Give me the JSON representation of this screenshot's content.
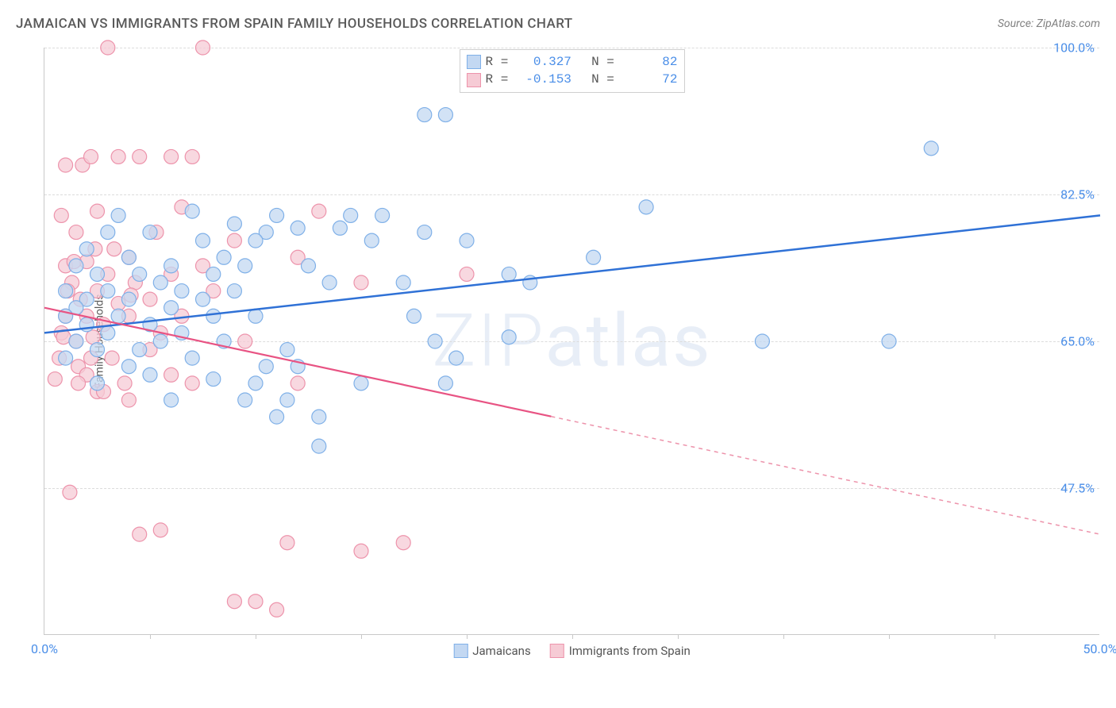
{
  "header": {
    "title": "JAMAICAN VS IMMIGRANTS FROM SPAIN FAMILY HOUSEHOLDS CORRELATION CHART",
    "source": "Source: ZipAtlas.com"
  },
  "chart": {
    "type": "scatter",
    "ylabel": "Family Households",
    "watermark_prefix": "ZIP",
    "watermark_suffix": "atlas",
    "plot_bg": "#ffffff",
    "grid_color": "#dcdcdc",
    "axis_color": "#c8c8c8",
    "label_color": "#4a8ee8",
    "text_color": "#5a5a5a",
    "xlim": [
      0,
      50
    ],
    "ylim": [
      30,
      100
    ],
    "xtick_labels": [
      {
        "pos": 0,
        "label": "0.0%"
      },
      {
        "pos": 50,
        "label": "50.0%"
      }
    ],
    "xtick_marks": [
      5,
      10,
      15,
      20,
      25,
      30,
      35,
      40,
      45
    ],
    "yticks": [
      {
        "pos": 47.5,
        "label": "47.5%"
      },
      {
        "pos": 65.0,
        "label": "65.0%"
      },
      {
        "pos": 82.5,
        "label": "82.5%"
      },
      {
        "pos": 100.0,
        "label": "100.0%"
      }
    ],
    "series": [
      {
        "name": "Jamaicans",
        "fill_color": "#c3d8f2",
        "stroke_color": "#7fb0e8",
        "line_color": "#2f71d6",
        "line_width": 2.5,
        "marker_radius": 9,
        "r_value": "0.327",
        "n_value": "82",
        "trend": {
          "x1": 0,
          "y1": 66,
          "x2": 50,
          "y2": 80,
          "dashed": false
        },
        "points": [
          [
            19,
            92
          ],
          [
            42,
            88
          ],
          [
            28.5,
            81
          ],
          [
            34,
            65
          ],
          [
            26,
            75
          ],
          [
            23,
            72
          ],
          [
            22,
            73
          ],
          [
            20,
            77
          ],
          [
            19.5,
            63
          ],
          [
            19,
            60
          ],
          [
            18.5,
            65
          ],
          [
            18,
            92
          ],
          [
            18,
            78
          ],
          [
            17.5,
            68
          ],
          [
            17,
            72
          ],
          [
            16,
            80
          ],
          [
            15.5,
            77
          ],
          [
            15,
            60
          ],
          [
            14.5,
            80
          ],
          [
            14,
            78.5
          ],
          [
            13.5,
            72
          ],
          [
            13,
            56
          ],
          [
            13,
            52.5
          ],
          [
            12.5,
            74
          ],
          [
            12,
            78.5
          ],
          [
            12,
            62
          ],
          [
            11.5,
            58
          ],
          [
            11.5,
            64
          ],
          [
            11,
            56
          ],
          [
            11,
            80
          ],
          [
            10.5,
            62
          ],
          [
            10.5,
            78
          ],
          [
            10,
            77
          ],
          [
            10,
            68
          ],
          [
            10,
            60
          ],
          [
            9.5,
            74
          ],
          [
            9.5,
            58
          ],
          [
            9,
            79
          ],
          [
            9,
            71
          ],
          [
            8.5,
            65
          ],
          [
            8.5,
            75
          ],
          [
            8,
            60.5
          ],
          [
            8,
            68
          ],
          [
            8,
            73
          ],
          [
            7.5,
            70
          ],
          [
            7.5,
            77
          ],
          [
            7,
            63
          ],
          [
            7,
            80.5
          ],
          [
            6.5,
            71
          ],
          [
            6.5,
            66
          ],
          [
            6,
            74
          ],
          [
            6,
            58
          ],
          [
            6,
            69
          ],
          [
            5.5,
            65
          ],
          [
            5.5,
            72
          ],
          [
            5,
            78
          ],
          [
            5,
            61
          ],
          [
            5,
            67
          ],
          [
            4.5,
            73
          ],
          [
            4.5,
            64
          ],
          [
            4,
            70
          ],
          [
            4,
            75
          ],
          [
            4,
            62
          ],
          [
            3.5,
            68
          ],
          [
            3.5,
            80
          ],
          [
            3,
            66
          ],
          [
            3,
            71
          ],
          [
            3,
            78
          ],
          [
            2.5,
            64
          ],
          [
            2.5,
            73
          ],
          [
            2.5,
            60
          ],
          [
            2,
            67
          ],
          [
            2,
            76
          ],
          [
            2,
            70
          ],
          [
            1.5,
            69
          ],
          [
            1.5,
            65
          ],
          [
            1.5,
            74
          ],
          [
            1,
            68
          ],
          [
            1,
            63
          ],
          [
            1,
            71
          ],
          [
            40,
            65
          ],
          [
            22,
            65.5
          ]
        ]
      },
      {
        "name": "Immigants from Spain",
        "display_name": "Immigrants from Spain",
        "fill_color": "#f6cbd5",
        "stroke_color": "#ed93ab",
        "line_color": "#e85383",
        "line_width": 2.2,
        "marker_radius": 9,
        "r_value": "-0.153",
        "n_value": "72",
        "trend": {
          "x1": 0,
          "y1": 69,
          "x2": 50,
          "y2": 42,
          "solid_until_x": 24,
          "dashed": true
        },
        "points": [
          [
            0.5,
            60.5
          ],
          [
            0.7,
            63
          ],
          [
            0.8,
            66
          ],
          [
            0.8,
            80
          ],
          [
            1,
            86
          ],
          [
            1,
            74
          ],
          [
            1,
            68
          ],
          [
            1.2,
            47
          ],
          [
            1.3,
            72
          ],
          [
            1.5,
            65
          ],
          [
            1.5,
            78
          ],
          [
            1.6,
            62
          ],
          [
            1.7,
            70
          ],
          [
            1.8,
            86
          ],
          [
            2,
            74.5
          ],
          [
            2,
            61
          ],
          [
            2,
            68
          ],
          [
            2.2,
            87
          ],
          [
            2.3,
            65.5
          ],
          [
            2.5,
            71
          ],
          [
            2.5,
            80.5
          ],
          [
            2.5,
            59
          ],
          [
            2.8,
            67
          ],
          [
            3,
            73
          ],
          [
            3,
            100
          ],
          [
            3.2,
            63
          ],
          [
            3.5,
            69.5
          ],
          [
            3.5,
            87
          ],
          [
            3.8,
            60
          ],
          [
            4,
            75
          ],
          [
            4,
            68
          ],
          [
            4.3,
            72
          ],
          [
            4.5,
            87
          ],
          [
            4.5,
            42
          ],
          [
            5,
            64
          ],
          [
            5,
            70
          ],
          [
            5.3,
            78
          ],
          [
            5.5,
            66
          ],
          [
            5.5,
            42.5
          ],
          [
            6,
            73
          ],
          [
            6,
            61
          ],
          [
            6.5,
            68
          ],
          [
            7,
            87
          ],
          [
            7,
            60
          ],
          [
            7.5,
            74
          ],
          [
            8,
            71
          ],
          [
            9,
            77
          ],
          [
            9,
            34
          ],
          [
            9.5,
            65
          ],
          [
            10,
            34
          ],
          [
            11,
            33
          ],
          [
            11.5,
            41
          ],
          [
            12,
            60
          ],
          [
            12,
            75
          ],
          [
            13,
            80.5
          ],
          [
            15,
            40
          ],
          [
            15,
            72
          ],
          [
            17,
            41
          ],
          [
            20,
            73
          ],
          [
            6.5,
            81
          ],
          [
            4,
            58
          ],
          [
            2.8,
            59
          ],
          [
            0.9,
            65.5
          ],
          [
            1.1,
            71
          ],
          [
            1.4,
            74.5
          ],
          [
            2.2,
            63
          ],
          [
            3.3,
            76
          ],
          [
            4.1,
            70.5
          ],
          [
            6,
            87
          ],
          [
            1.6,
            60
          ],
          [
            2.4,
            76
          ],
          [
            7.5,
            100
          ]
        ]
      }
    ],
    "legend_bottom": [
      {
        "label": "Jamaicans",
        "fill": "#c3d8f2",
        "stroke": "#7fb0e8"
      },
      {
        "label": "Immigrants from Spain",
        "fill": "#f6cbd5",
        "stroke": "#ed93ab"
      }
    ]
  }
}
